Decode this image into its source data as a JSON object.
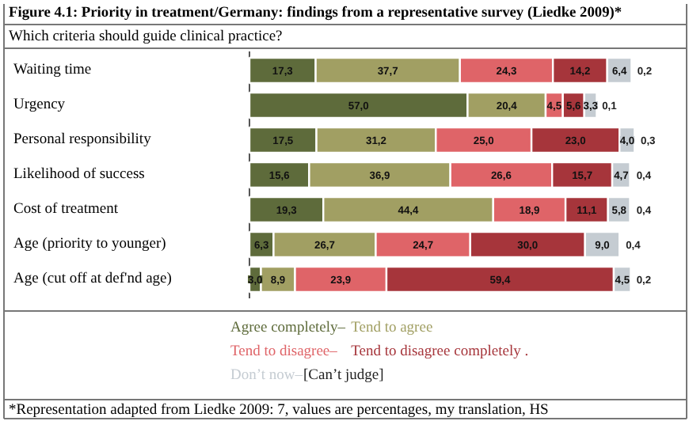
{
  "chart_data": {
    "type": "bar",
    "orientation": "horizontal",
    "stacked": true,
    "title": "Figure 4.1:  Priority in treatment/Germany: findings from a representative survey (Liedke 2009)*",
    "subtitle": "Which criteria should guide clinical practice?",
    "categories": [
      "Waiting time",
      "Urgency",
      "Personal responsibility",
      "Likelihood of success",
      "Cost of treatment",
      "Age (priority to younger)",
      "Age (cut off at def'nd age)"
    ],
    "series": [
      {
        "name": "Agree completely–",
        "color": "#5e6b3b",
        "values": [
          17.3,
          57.0,
          17.5,
          15.6,
          19.3,
          6.3,
          3.0
        ],
        "value_labels": [
          "17,3",
          "57,0",
          "17,5",
          "15,6",
          "19,3",
          "6,3",
          "3,0"
        ]
      },
      {
        "name": "Tend to agree",
        "color": "#a19f63",
        "values": [
          37.7,
          20.4,
          31.2,
          36.9,
          44.4,
          26.7,
          8.9
        ],
        "value_labels": [
          "37,7",
          "20,4",
          "31,2",
          "36,9",
          "44,4",
          "26,7",
          "8,9"
        ]
      },
      {
        "name": "Tend to disagree–",
        "color": "#df6468",
        "values": [
          24.3,
          4.5,
          25.0,
          26.6,
          18.9,
          24.7,
          23.9
        ],
        "value_labels": [
          "24,3",
          "4,5",
          "25,0",
          "26,6",
          "18,9",
          "24,7",
          "23,9"
        ]
      },
      {
        "name": "Tend to disagree completely .",
        "color": "#a6353b",
        "values": [
          14.2,
          5.6,
          23.0,
          15.7,
          11.1,
          30.0,
          59.4
        ],
        "value_labels": [
          "14,2",
          "5,6",
          "23,0",
          "15,7",
          "11,1",
          "30,0",
          "59,4"
        ]
      },
      {
        "name": "Don’t now–",
        "color": "#c5ccd2",
        "values": [
          6.4,
          3.3,
          4.0,
          4.7,
          5.8,
          9.0,
          4.5
        ],
        "value_labels": [
          "6,4",
          "3,3",
          "4,0",
          "4,7",
          "5,8",
          "9,0",
          "4,5"
        ]
      },
      {
        "name": "[Can’t judge]",
        "color": "#222222",
        "values": [
          0.2,
          0.1,
          0.3,
          0.4,
          0.4,
          0.4,
          0.2
        ],
        "value_labels": [
          "0,2",
          "0,1",
          "0,3",
          "0,4",
          "0,4",
          "0,4",
          "0,2"
        ]
      }
    ],
    "legend": "bottom",
    "annotations": [
      "*Representation adapted from Liedke 2009: 7, values are percentages, my translation, HS"
    ]
  }
}
